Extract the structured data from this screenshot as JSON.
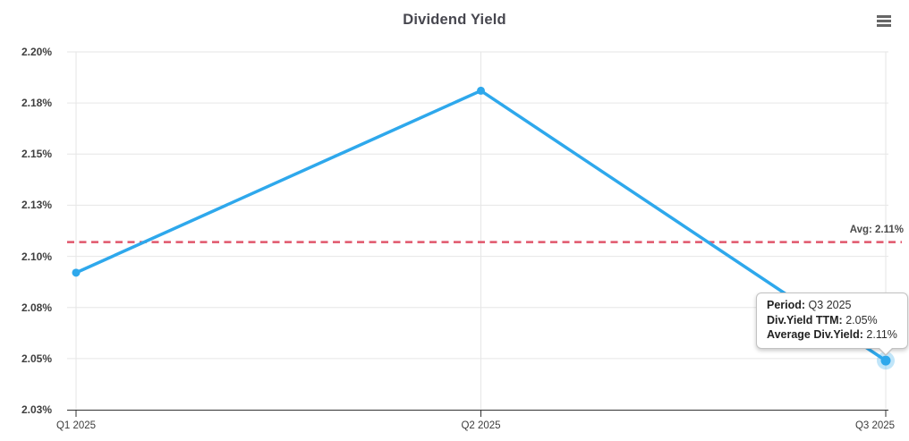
{
  "header": {
    "title": "Dividend Yield",
    "menu_icon": "hamburger-icon"
  },
  "chart_data": {
    "type": "line",
    "title": "Dividend Yield",
    "categories": [
      "Q1 2025",
      "Q2 2025",
      "Q3 2025"
    ],
    "series": [
      {
        "name": "Div.Yield TTM",
        "color": "#2ea8ec",
        "values": [
          2.092,
          2.181,
          2.049
        ]
      }
    ],
    "average_line": {
      "value": 2.107,
      "label": "Avg: 2.11%",
      "color": "#e0566b",
      "style": "dashed"
    },
    "y_axis": {
      "tick_labels": [
        "2.20%",
        "2.18%",
        "2.15%",
        "2.13%",
        "2.10%",
        "2.08%",
        "2.05%",
        "2.03%"
      ],
      "tick_values": [
        2.2,
        2.175,
        2.15,
        2.125,
        2.1,
        2.075,
        2.05,
        2.025
      ],
      "range": [
        2.025,
        2.2
      ]
    },
    "xlabel": "",
    "ylabel": "",
    "grid": true,
    "legend": "none",
    "selected_point_index": 2
  },
  "tooltip": {
    "rows": [
      {
        "label": "Period:",
        "value": "Q3 2025"
      },
      {
        "label": "Div.Yield TTM:",
        "value": "2.05%"
      },
      {
        "label": "Average Div.Yield:",
        "value": "2.11%"
      }
    ]
  },
  "colors": {
    "series": "#2ea8ec",
    "average_line": "#e0566b",
    "grid": "#e6e6e6",
    "axis": "#333333"
  }
}
